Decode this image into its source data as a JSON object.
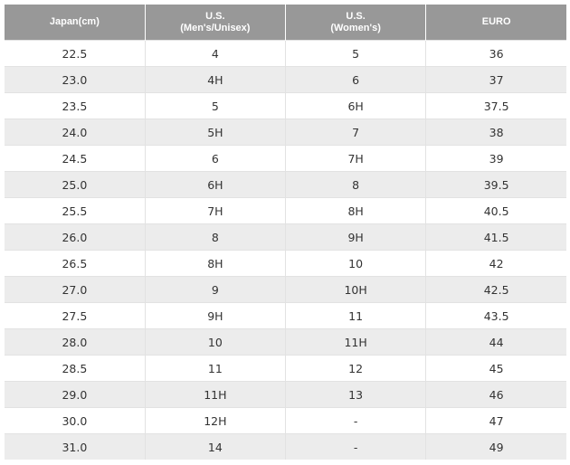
{
  "table": {
    "headers": [
      "Japan(cm)",
      "U.S.\n(Men's/Unisex)",
      "U.S.\n(Women's)",
      "EURO"
    ],
    "rows": [
      [
        "22.5",
        "4",
        "5",
        "36"
      ],
      [
        "23.0",
        "4H",
        "6",
        "37"
      ],
      [
        "23.5",
        "5",
        "6H",
        "37.5"
      ],
      [
        "24.0",
        "5H",
        "7",
        "38"
      ],
      [
        "24.5",
        "6",
        "7H",
        "39"
      ],
      [
        "25.0",
        "6H",
        "8",
        "39.5"
      ],
      [
        "25.5",
        "7H",
        "8H",
        "40.5"
      ],
      [
        "26.0",
        "8",
        "9H",
        "41.5"
      ],
      [
        "26.5",
        "8H",
        "10",
        "42"
      ],
      [
        "27.0",
        "9",
        "10H",
        "42.5"
      ],
      [
        "27.5",
        "9H",
        "11",
        "43.5"
      ],
      [
        "28.0",
        "10",
        "11H",
        "44"
      ],
      [
        "28.5",
        "11",
        "12",
        "45"
      ],
      [
        "29.0",
        "11H",
        "13",
        "46"
      ],
      [
        "30.0",
        "12H",
        "-",
        "47"
      ],
      [
        "31.0",
        "14",
        "-",
        "49"
      ]
    ]
  }
}
